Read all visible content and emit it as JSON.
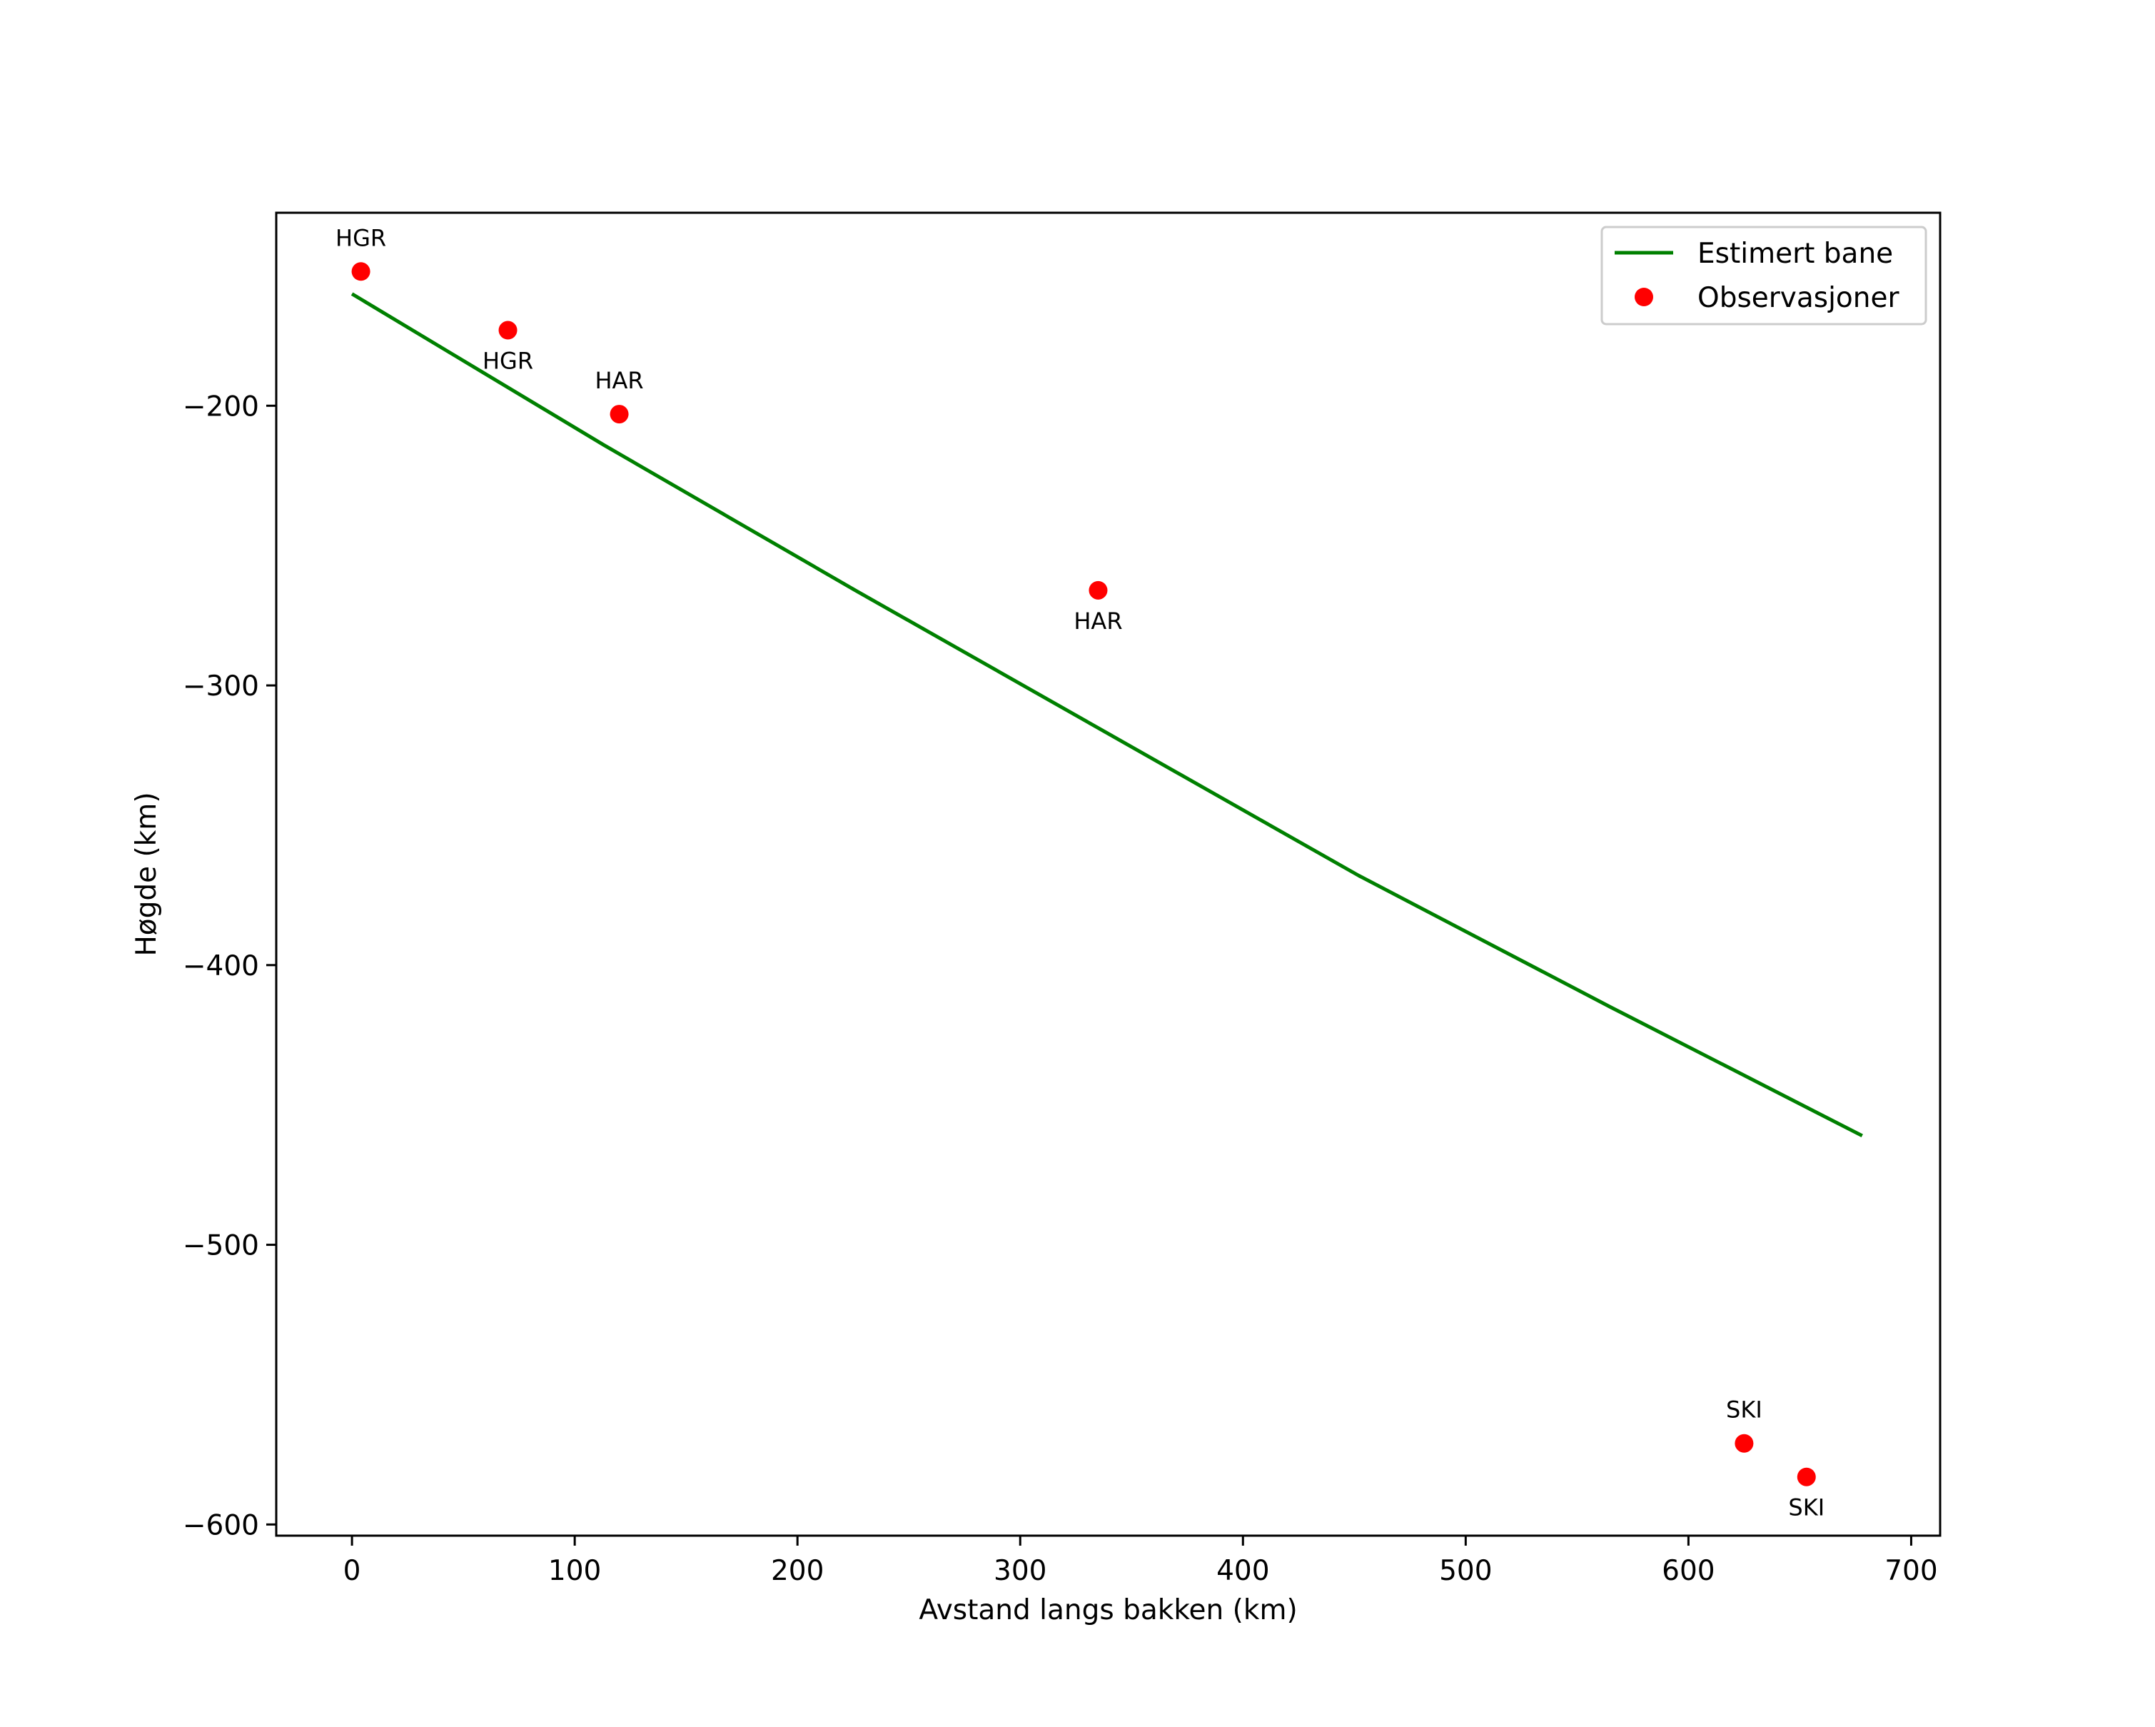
{
  "chart_data": {
    "type": "line+scatter",
    "title": "",
    "xlabel": "Avstand langs bakken (km)",
    "ylabel": "Høgde (km)",
    "xlim": [
      -34,
      713
    ],
    "ylim": [
      -604,
      -131
    ],
    "xticks": [
      0,
      100,
      200,
      300,
      400,
      500,
      600,
      700
    ],
    "yticks": [
      -200,
      -300,
      -400,
      -500,
      -600
    ],
    "xtick_labels": [
      "0",
      "100",
      "200",
      "300",
      "400",
      "500",
      "600",
      "700"
    ],
    "ytick_labels": [
      "−200",
      "−300",
      "−400",
      "−500",
      "−600"
    ],
    "grid": false,
    "legend_position": "top-right",
    "colors": {
      "line": "#008000",
      "points": "#ff0000",
      "axes": "#000000"
    },
    "series": [
      {
        "name": "Estimert bane",
        "kind": "line",
        "x": [
          0,
          113,
          226,
          339,
          452,
          565,
          678
        ],
        "y": [
          -160,
          -214,
          -266,
          -317,
          -368,
          -415,
          -461
        ]
      },
      {
        "name": "Observasjoner",
        "kind": "scatter",
        "points": [
          {
            "x": 4,
            "y": -152,
            "label": "HGR",
            "label_pos": "above"
          },
          {
            "x": 70,
            "y": -173,
            "label": "HGR",
            "label_pos": "below"
          },
          {
            "x": 120,
            "y": -203,
            "label": "HAR",
            "label_pos": "above"
          },
          {
            "x": 335,
            "y": -266,
            "label": "HAR",
            "label_pos": "below"
          },
          {
            "x": 625,
            "y": -571,
            "label": "SKI",
            "label_pos": "above"
          },
          {
            "x": 653,
            "y": -583,
            "label": "SKI",
            "label_pos": "below"
          }
        ]
      }
    ],
    "legend": {
      "entries": [
        "Estimert bane",
        "Observasjoner"
      ]
    }
  }
}
